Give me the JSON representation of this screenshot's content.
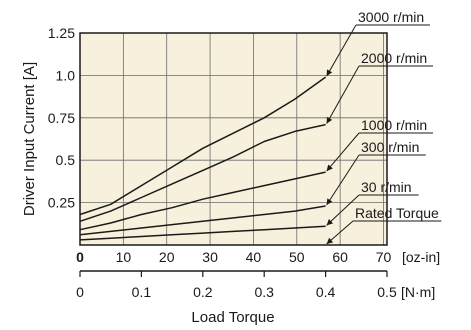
{
  "chart_data": {
    "type": "line",
    "title": "",
    "xlabel": "Load Torque",
    "ylabel": "Driver Input Current [A]",
    "x_unit_primary": "[oz-in]",
    "x_unit_secondary": "[N·m]",
    "xlim": [
      0,
      0.5
    ],
    "ylim": [
      0,
      1.25
    ],
    "grid": true,
    "colors": {
      "background": "#f7f0dc",
      "line": "#1a1a1a",
      "grid": "#6b6b6b"
    },
    "x_ticks_primary": [
      "0",
      "10",
      "20",
      "30",
      "40",
      "50",
      "60",
      "70"
    ],
    "x_ticks_primary_values": [
      0,
      10,
      20,
      30,
      40,
      50,
      60,
      70
    ],
    "x_ticks_secondary": [
      "0",
      "0.1",
      "0.2",
      "0.3",
      "0.4",
      "0.5"
    ],
    "x_ticks_secondary_values": [
      0,
      0.1,
      0.2,
      0.3,
      0.4,
      0.5
    ],
    "y_ticks": [
      "0.25",
      "0.5",
      "0.75",
      "1.0",
      "1.25"
    ],
    "y_ticks_values": [
      0.25,
      0.5,
      0.75,
      1.0,
      1.25
    ],
    "series": [
      {
        "name": "3000 r/min",
        "x": [
          0,
          0.05,
          0.1,
          0.15,
          0.2,
          0.25,
          0.3,
          0.35,
          0.4
        ],
        "values": [
          0.18,
          0.24,
          0.35,
          0.46,
          0.57,
          0.66,
          0.75,
          0.86,
          0.99
        ]
      },
      {
        "name": "2000 r/min",
        "x": [
          0,
          0.05,
          0.1,
          0.15,
          0.2,
          0.25,
          0.3,
          0.35,
          0.4
        ],
        "values": [
          0.14,
          0.2,
          0.28,
          0.36,
          0.44,
          0.52,
          0.61,
          0.67,
          0.71
        ]
      },
      {
        "name": "1000 r/min",
        "x": [
          0,
          0.05,
          0.1,
          0.15,
          0.2,
          0.25,
          0.3,
          0.35,
          0.4
        ],
        "values": [
          0.09,
          0.13,
          0.18,
          0.22,
          0.27,
          0.31,
          0.35,
          0.39,
          0.43
        ]
      },
      {
        "name": "300 r/min",
        "x": [
          0,
          0.05,
          0.1,
          0.15,
          0.2,
          0.25,
          0.3,
          0.35,
          0.4
        ],
        "values": [
          0.06,
          0.08,
          0.1,
          0.12,
          0.14,
          0.16,
          0.18,
          0.2,
          0.23
        ]
      },
      {
        "name": "30 r/min",
        "x": [
          0,
          0.05,
          0.1,
          0.15,
          0.2,
          0.25,
          0.3,
          0.35,
          0.4
        ],
        "values": [
          0.03,
          0.04,
          0.05,
          0.06,
          0.07,
          0.08,
          0.09,
          0.1,
          0.11
        ]
      }
    ],
    "annotations": [
      {
        "text": "3000 r/min",
        "target_x": 0.4,
        "target_y": 0.99
      },
      {
        "text": "2000 r/min",
        "target_x": 0.4,
        "target_y": 0.71
      },
      {
        "text": "1000 r/min",
        "target_x": 0.4,
        "target_y": 0.43
      },
      {
        "text": "300 r/min",
        "target_x": 0.4,
        "target_y": 0.23
      },
      {
        "text": "30 r/min",
        "target_x": 0.4,
        "target_y": 0.11
      },
      {
        "text": "Rated Torque",
        "target_x": 0.4,
        "target_y": 0.0
      }
    ]
  }
}
